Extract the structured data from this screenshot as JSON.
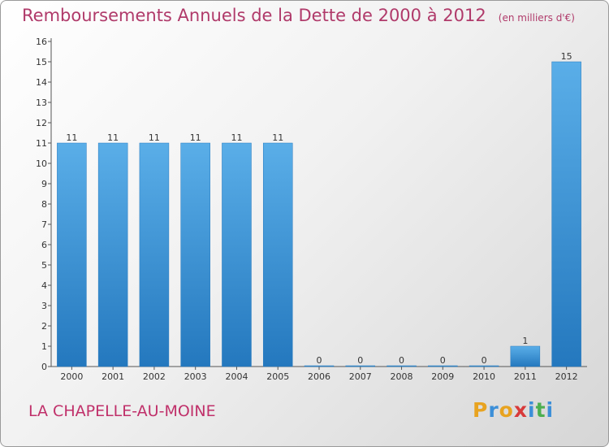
{
  "title": "Remboursements Annuels de la Dette de 2000 à 2012",
  "unit": "(en milliers d'€)",
  "commune": "LA CHAPELLE-AU-MOINE",
  "logo": {
    "letters": [
      "P",
      "r",
      "o",
      "x",
      "i",
      "t",
      "i"
    ],
    "colors": [
      "#e8a320",
      "#3c8fd8",
      "#e8a320",
      "#d83a3a",
      "#3c8fd8",
      "#4caf50",
      "#3c8fd8"
    ]
  },
  "colors": {
    "bar": "#3d97dc",
    "bar_dark": "#2478be",
    "title": "#b03a6a"
  },
  "chart_data": {
    "type": "bar",
    "categories": [
      "2000",
      "2001",
      "2002",
      "2003",
      "2004",
      "2005",
      "2006",
      "2007",
      "2008",
      "2009",
      "2010",
      "2011",
      "2012"
    ],
    "values": [
      11,
      11,
      11,
      11,
      11,
      11,
      0,
      0,
      0,
      0,
      0,
      1,
      15
    ],
    "data_labels": [
      "11",
      "11",
      "11",
      "11",
      "11",
      "11",
      "0",
      "0",
      "0",
      "0",
      "0",
      "1",
      "15"
    ],
    "yticks": [
      0,
      1,
      2,
      3,
      4,
      5,
      6,
      7,
      8,
      9,
      10,
      11,
      12,
      13,
      14,
      15,
      16
    ],
    "ylim": [
      0,
      16
    ],
    "grid": false
  }
}
